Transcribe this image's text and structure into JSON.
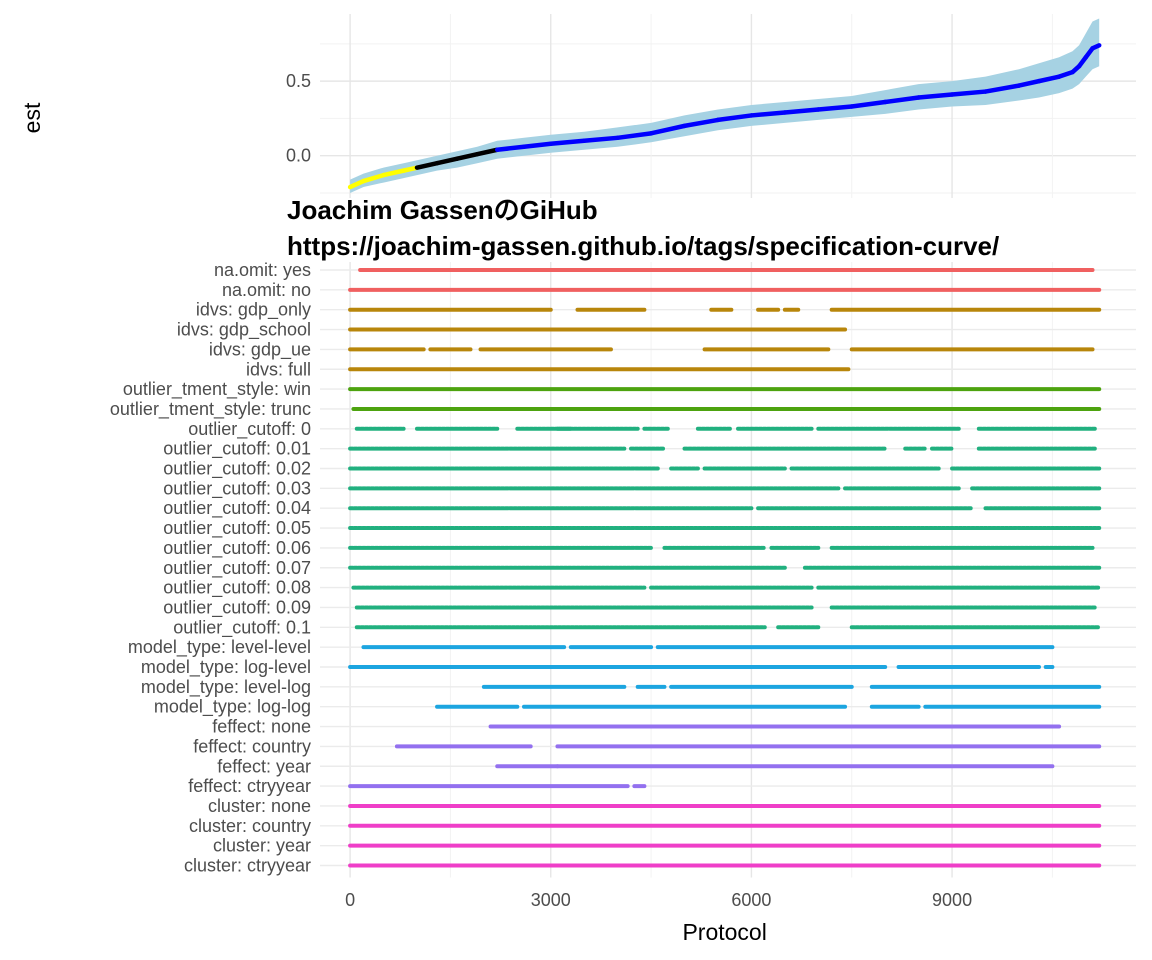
{
  "chart_data": [
    {
      "type": "line",
      "ylabel": "est",
      "ylim": [
        -0.25,
        0.95
      ],
      "y_ticks": [
        0.0,
        0.5
      ],
      "x_ticks": [
        0,
        3000,
        6000,
        9000
      ],
      "xlim": [
        -450,
        11750
      ],
      "grid": true,
      "line_colors": [
        "#ffff00",
        "#000000",
        "#0000ff"
      ],
      "ribbon_color": "#a6d2e3",
      "curve": {
        "x": [
          0,
          200,
          500,
          800,
          1000,
          1300,
          1600,
          1900,
          2200,
          2600,
          3000,
          3500,
          4000,
          4500,
          5000,
          5500,
          6000,
          6500,
          7000,
          7500,
          8000,
          8500,
          9000,
          9500,
          10000,
          10300,
          10600,
          10800,
          10900,
          11000,
          11100,
          11200
        ],
        "est": [
          -0.21,
          -0.17,
          -0.13,
          -0.1,
          -0.08,
          -0.05,
          -0.02,
          0.01,
          0.04,
          0.06,
          0.08,
          0.1,
          0.12,
          0.15,
          0.2,
          0.24,
          0.27,
          0.29,
          0.31,
          0.33,
          0.36,
          0.39,
          0.41,
          0.43,
          0.47,
          0.5,
          0.53,
          0.56,
          0.6,
          0.66,
          0.72,
          0.74
        ],
        "lower": [
          -0.25,
          -0.21,
          -0.18,
          -0.15,
          -0.13,
          -0.1,
          -0.08,
          -0.05,
          -0.02,
          0.0,
          0.02,
          0.04,
          0.06,
          0.09,
          0.13,
          0.17,
          0.2,
          0.22,
          0.24,
          0.26,
          0.28,
          0.31,
          0.33,
          0.34,
          0.37,
          0.39,
          0.42,
          0.45,
          0.48,
          0.53,
          0.58,
          0.6
        ],
        "upper": [
          -0.16,
          -0.12,
          -0.08,
          -0.05,
          -0.03,
          0.0,
          0.03,
          0.06,
          0.1,
          0.12,
          0.14,
          0.16,
          0.19,
          0.22,
          0.27,
          0.31,
          0.34,
          0.36,
          0.38,
          0.4,
          0.44,
          0.48,
          0.5,
          0.53,
          0.58,
          0.62,
          0.66,
          0.7,
          0.74,
          0.82,
          0.9,
          0.92
        ]
      },
      "overlay_title": [
        "Joachim GassenのGiHub",
        "https://joachim-gassen.github.io/tags/specification-curve/"
      ]
    },
    {
      "type": "scatter",
      "xlabel": "Protocol",
      "x_ticks": [
        0,
        3000,
        6000,
        9000
      ],
      "xlim": [
        -450,
        11750
      ],
      "grid": true,
      "rows": [
        {
          "label": "na.omit: yes",
          "color": "#f06060",
          "segments": [
            [
              150,
              11100
            ]
          ]
        },
        {
          "label": "na.omit: no",
          "color": "#f06060",
          "segments": [
            [
              0,
              11200
            ]
          ]
        },
        {
          "label": "idvs: gdp_only",
          "color": "#b8860b",
          "segments": [
            [
              0,
              3000
            ],
            [
              3400,
              4400
            ],
            [
              5400,
              5700
            ],
            [
              6100,
              6400
            ],
            [
              6500,
              6700
            ],
            [
              7200,
              11200
            ]
          ]
        },
        {
          "label": "idvs: gdp_school",
          "color": "#b8860b",
          "segments": [
            [
              0,
              7400
            ]
          ]
        },
        {
          "label": "idvs: gdp_ue",
          "color": "#b8860b",
          "segments": [
            [
              0,
              1100
            ],
            [
              1200,
              1800
            ],
            [
              1950,
              3900
            ],
            [
              5300,
              7150
            ],
            [
              7500,
              11100
            ]
          ]
        },
        {
          "label": "idvs: full",
          "color": "#b8860b",
          "segments": [
            [
              0,
              7450
            ]
          ]
        },
        {
          "label": "outlier_tment_style: win",
          "color": "#4da30f",
          "segments": [
            [
              0,
              11200
            ]
          ]
        },
        {
          "label": "outlier_tment_style: trunc",
          "color": "#4da30f",
          "segments": [
            [
              50,
              11200
            ]
          ]
        },
        {
          "label": "outlier_cutoff: 0",
          "color": "#21b07f",
          "segments": [
            [
              100,
              800
            ],
            [
              1000,
              2200
            ],
            [
              2500,
              3300
            ],
            [
              3100,
              4300
            ],
            [
              4400,
              4750
            ],
            [
              5200,
              5700
            ],
            [
              5800,
              6900
            ],
            [
              7000,
              9100
            ],
            [
              9400,
              11150
            ]
          ]
        },
        {
          "label": "outlier_cutoff: 0.01",
          "color": "#21b07f",
          "segments": [
            [
              0,
              4100
            ],
            [
              4200,
              4700
            ],
            [
              5000,
              8000
            ],
            [
              8300,
              8600
            ],
            [
              8700,
              9000
            ],
            [
              9400,
              11150
            ]
          ]
        },
        {
          "label": "outlier_cutoff: 0.02",
          "color": "#21b07f",
          "segments": [
            [
              0,
              4600
            ],
            [
              4800,
              5200
            ],
            [
              5300,
              6500
            ],
            [
              6600,
              8800
            ],
            [
              9000,
              11200
            ]
          ]
        },
        {
          "label": "outlier_cutoff: 0.03",
          "color": "#21b07f",
          "segments": [
            [
              0,
              7300
            ],
            [
              7400,
              9100
            ],
            [
              9300,
              11200
            ]
          ]
        },
        {
          "label": "outlier_cutoff: 0.04",
          "color": "#21b07f",
          "segments": [
            [
              0,
              6000
            ],
            [
              6100,
              9300
            ],
            [
              9500,
              11200
            ]
          ]
        },
        {
          "label": "outlier_cutoff: 0.05",
          "color": "#21b07f",
          "segments": [
            [
              0,
              11200
            ]
          ]
        },
        {
          "label": "outlier_cutoff: 0.06",
          "color": "#21b07f",
          "segments": [
            [
              0,
              4500
            ],
            [
              4700,
              6200
            ],
            [
              6300,
              7000
            ],
            [
              7200,
              11100
            ]
          ]
        },
        {
          "label": "outlier_cutoff: 0.07",
          "color": "#21b07f",
          "segments": [
            [
              0,
              6500
            ],
            [
              6800,
              11200
            ]
          ]
        },
        {
          "label": "outlier_cutoff: 0.08",
          "color": "#21b07f",
          "segments": [
            [
              50,
              4400
            ],
            [
              4500,
              6900
            ],
            [
              7000,
              11200
            ]
          ]
        },
        {
          "label": "outlier_cutoff: 0.09",
          "color": "#21b07f",
          "segments": [
            [
              100,
              6900
            ],
            [
              7200,
              11150
            ]
          ]
        },
        {
          "label": "outlier_cutoff: 0.1",
          "color": "#21b07f",
          "segments": [
            [
              100,
              6200
            ],
            [
              6400,
              7000
            ],
            [
              7500,
              11200
            ]
          ]
        },
        {
          "label": "model_type: level-level",
          "color": "#1ca5e0",
          "segments": [
            [
              200,
              3200
            ],
            [
              3300,
              4500
            ],
            [
              4600,
              10500
            ]
          ]
        },
        {
          "label": "model_type: log-level",
          "color": "#1ca5e0",
          "segments": [
            [
              0,
              8000
            ],
            [
              8200,
              10300
            ],
            [
              10400,
              10500
            ]
          ]
        },
        {
          "label": "model_type: level-log",
          "color": "#1ca5e0",
          "segments": [
            [
              2000,
              4100
            ],
            [
              4300,
              4700
            ],
            [
              4800,
              7500
            ],
            [
              7800,
              11200
            ]
          ]
        },
        {
          "label": "model_type: log-log",
          "color": "#1ca5e0",
          "segments": [
            [
              1300,
              2500
            ],
            [
              2600,
              7400
            ],
            [
              7800,
              8500
            ],
            [
              8600,
              11200
            ]
          ]
        },
        {
          "label": "feffect: none",
          "color": "#9370ef",
          "segments": [
            [
              2100,
              10600
            ]
          ]
        },
        {
          "label": "feffect: country",
          "color": "#9370ef",
          "segments": [
            [
              700,
              2700
            ],
            [
              3100,
              11200
            ]
          ]
        },
        {
          "label": "feffect: year",
          "color": "#9370ef",
          "segments": [
            [
              2200,
              3100
            ],
            [
              3100,
              10500
            ]
          ]
        },
        {
          "label": "feffect: ctryyear",
          "color": "#9370ef",
          "segments": [
            [
              0,
              4150
            ],
            [
              4250,
              4400
            ]
          ]
        },
        {
          "label": "cluster: none",
          "color": "#ef3ec8",
          "segments": [
            [
              0,
              11200
            ]
          ]
        },
        {
          "label": "cluster: country",
          "color": "#ef3ec8",
          "segments": [
            [
              0,
              11200
            ]
          ]
        },
        {
          "label": "cluster: year",
          "color": "#ef3ec8",
          "segments": [
            [
              0,
              11200
            ]
          ]
        },
        {
          "label": "cluster: ctryyear",
          "color": "#ef3ec8",
          "segments": [
            [
              0,
              11200
            ]
          ]
        }
      ]
    }
  ]
}
